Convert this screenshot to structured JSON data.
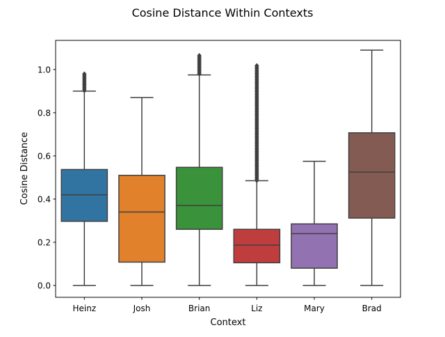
{
  "chart_data": {
    "type": "box",
    "title": "Cosine Distance Within Contexts",
    "xlabel": "Context",
    "ylabel": "Cosine Distance",
    "ylim": [
      -0.055,
      1.135
    ],
    "yticks": [
      0.0,
      0.2,
      0.4,
      0.6,
      0.8,
      1.0
    ],
    "ytick_labels": [
      "0.0",
      "0.2",
      "0.4",
      "0.6",
      "0.8",
      "1.0"
    ],
    "grid": false,
    "legend": "none",
    "categories": [
      "Heinz",
      "Josh",
      "Brian",
      "Liz",
      "Mary",
      "Brad"
    ],
    "colors": [
      "#3274a1",
      "#e1812c",
      "#3a923a",
      "#c03d3e",
      "#9372b2",
      "#845b53"
    ],
    "boxes": [
      {
        "category": "Heinz",
        "whisker_low": 0.0,
        "q1": 0.297,
        "median": 0.42,
        "q3": 0.537,
        "whisker_high": 0.9,
        "outliers_min": 0.9,
        "outliers_max": 0.98
      },
      {
        "category": "Josh",
        "whisker_low": 0.0,
        "q1": 0.108,
        "median": 0.34,
        "q3": 0.51,
        "whisker_high": 0.87,
        "outliers_min": null,
        "outliers_max": null
      },
      {
        "category": "Brian",
        "whisker_low": 0.0,
        "q1": 0.26,
        "median": 0.37,
        "q3": 0.547,
        "whisker_high": 0.975,
        "outliers_min": 0.975,
        "outliers_max": 1.065
      },
      {
        "category": "Liz",
        "whisker_low": 0.0,
        "q1": 0.105,
        "median": 0.187,
        "q3": 0.26,
        "whisker_high": 0.485,
        "outliers_min": 0.485,
        "outliers_max": 1.018
      },
      {
        "category": "Mary",
        "whisker_low": 0.0,
        "q1": 0.08,
        "median": 0.24,
        "q3": 0.285,
        "whisker_high": 0.575,
        "outliers_min": null,
        "outliers_max": null
      },
      {
        "category": "Brad",
        "whisker_low": 0.0,
        "q1": 0.312,
        "median": 0.525,
        "q3": 0.707,
        "whisker_high": 1.09,
        "outliers_min": null,
        "outliers_max": null
      }
    ]
  }
}
